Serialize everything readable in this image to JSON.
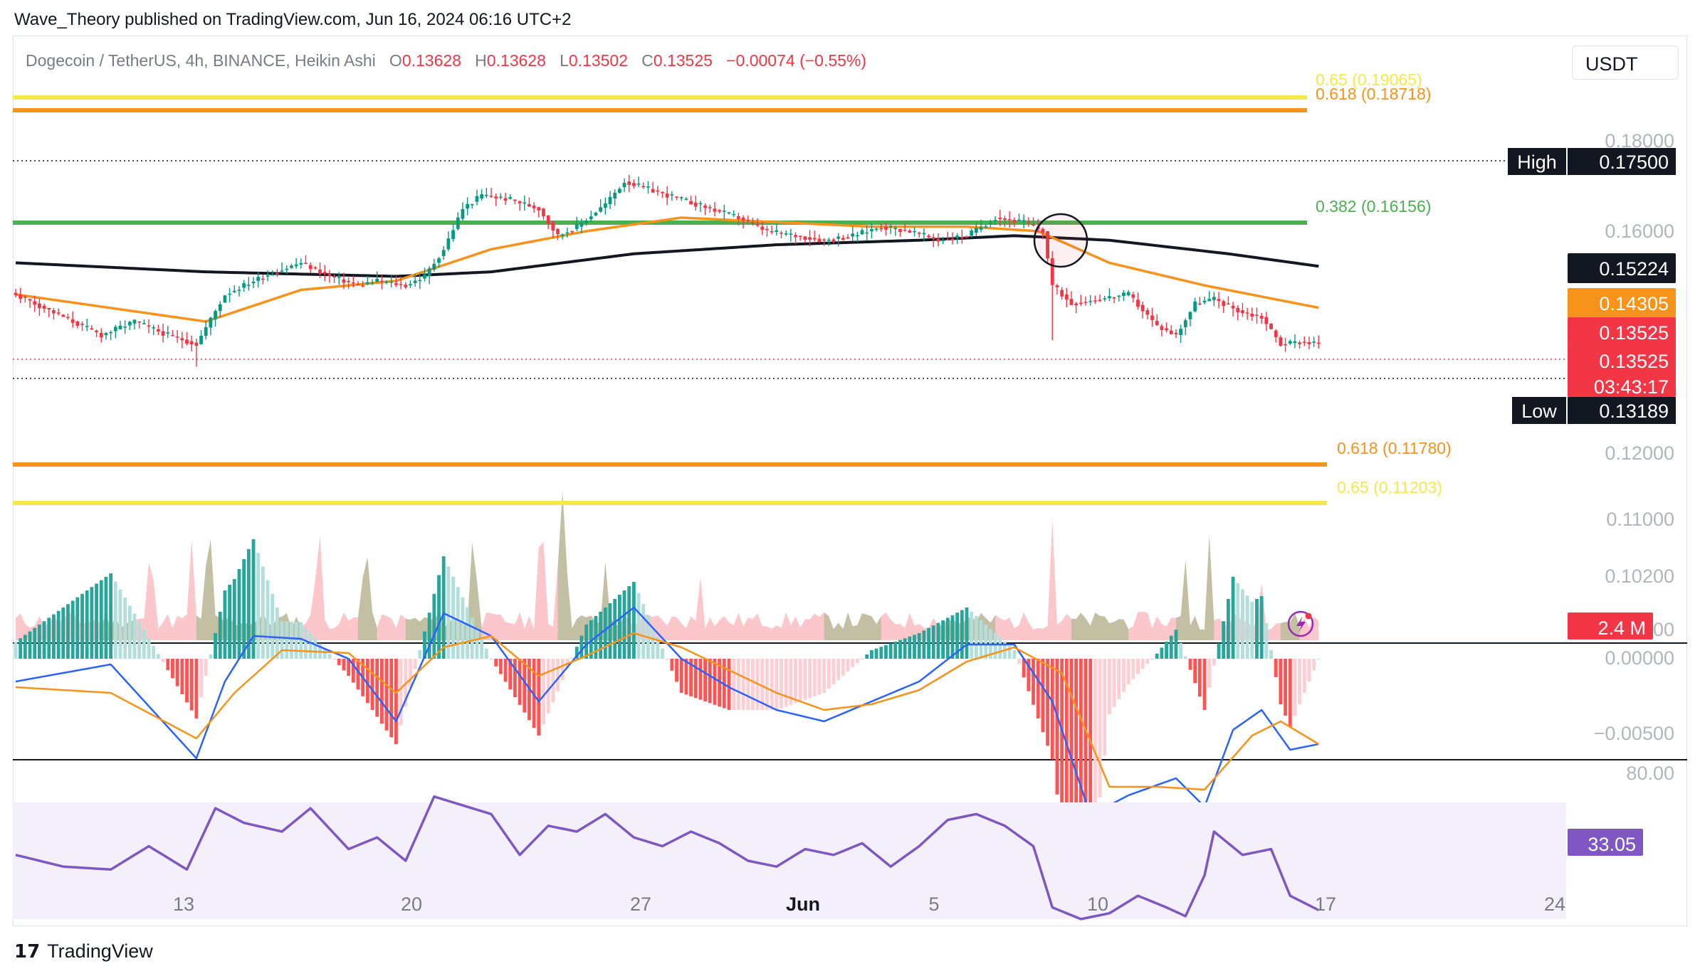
{
  "publisher": "Wave_Theory published on TradingView.com, Jun 16, 2024 06:16 UTC+2",
  "symbol": {
    "name": "Dogecoin / TetherUS, 4h, BINANCE, Heikin Ashi",
    "o_label": "O",
    "o": "0.13628",
    "h_label": "H",
    "h": "0.13628",
    "l_label": "L",
    "l": "0.13502",
    "c_label": "C",
    "c": "0.13525",
    "change": "−0.00074 (−0.55%)"
  },
  "currency_button": "USDT",
  "brand": {
    "logo": "17",
    "name": "TradingView"
  },
  "colors": {
    "up": "#089981",
    "down": "#f23645",
    "fib_618": "#f7931a",
    "fib_65": "#f5e94a",
    "fib_382": "#4caf50",
    "ema50": "#f7931a",
    "ema200": "#131722",
    "macd": "#2962ff",
    "signal": "#f7931a",
    "rsi": "#7e57c2",
    "rsi_band": "#f3f0fb"
  },
  "chart_data": [
    {
      "type": "candlestick",
      "title": "Dogecoin / TetherUS, 4h, BINANCE, Heikin Ashi",
      "x_ticks": [
        "13",
        "20",
        "27",
        "Jun",
        "5",
        "10",
        "17",
        "24"
      ],
      "y_ticks": [
        "0.18000",
        "0.16000",
        "0.12000",
        "0.11000",
        "0.10200",
        "0.0000"
      ],
      "axis_labels": [
        {
          "label": "",
          "value": "0.15224",
          "color": "#131722"
        },
        {
          "label": "",
          "value": "0.14305",
          "color": "#f7931a"
        },
        {
          "label": "",
          "value": "0.13525",
          "color": "#f23645"
        },
        {
          "label": "",
          "value": "0.13525",
          "extra": "03:43:17",
          "color": "#f23645"
        },
        {
          "label": "High",
          "value": "0.17500",
          "color": "#131722"
        },
        {
          "label": "Low",
          "value": "0.13189",
          "color": "#131722"
        }
      ],
      "fib_levels": [
        {
          "label": "0.65 (0.19065)",
          "value": 0.19065,
          "color": "#f5e94a"
        },
        {
          "label": "0.618 (0.18718)",
          "value": 0.18718,
          "color": "#f7931a"
        },
        {
          "label": "0.382 (0.16156)",
          "value": 0.16156,
          "color": "#4caf50"
        },
        {
          "label": "0.618 (0.11780)",
          "value": 0.1178,
          "color": "#f7931a"
        },
        {
          "label": "0.65 (0.11203)",
          "value": 0.11203,
          "color": "#f5e94a"
        }
      ],
      "high": 0.175,
      "low": 0.13189,
      "last": 0.13525,
      "countdown": "03:43:17",
      "ema50_last": 0.14305,
      "ema200_last": 0.15224,
      "price_keypoints": [
        [
          0,
          0.146
        ],
        [
          10,
          0.141
        ],
        [
          18,
          0.137
        ],
        [
          25,
          0.14
        ],
        [
          32,
          0.137
        ],
        [
          38,
          0.135
        ],
        [
          44,
          0.146
        ],
        [
          52,
          0.15
        ],
        [
          60,
          0.153
        ],
        [
          66,
          0.15
        ],
        [
          72,
          0.148
        ],
        [
          76,
          0.149
        ],
        [
          82,
          0.148
        ],
        [
          86,
          0.15
        ],
        [
          90,
          0.156
        ],
        [
          94,
          0.165
        ],
        [
          98,
          0.168
        ],
        [
          104,
          0.167
        ],
        [
          110,
          0.165
        ],
        [
          114,
          0.159
        ],
        [
          118,
          0.161
        ],
        [
          124,
          0.166
        ],
        [
          128,
          0.171
        ],
        [
          134,
          0.169
        ],
        [
          140,
          0.167
        ],
        [
          146,
          0.165
        ],
        [
          152,
          0.163
        ],
        [
          158,
          0.16
        ],
        [
          164,
          0.159
        ],
        [
          170,
          0.158
        ],
        [
          176,
          0.159
        ],
        [
          182,
          0.161
        ],
        [
          188,
          0.16
        ],
        [
          194,
          0.158
        ],
        [
          200,
          0.159
        ],
        [
          206,
          0.163
        ],
        [
          212,
          0.162
        ],
        [
          216,
          0.16
        ],
        [
          218,
          0.148
        ],
        [
          222,
          0.144
        ],
        [
          228,
          0.145
        ],
        [
          234,
          0.146
        ],
        [
          240,
          0.139
        ],
        [
          244,
          0.137
        ],
        [
          248,
          0.144
        ],
        [
          252,
          0.145
        ],
        [
          258,
          0.142
        ],
        [
          262,
          0.141
        ],
        [
          266,
          0.135
        ],
        [
          270,
          0.1355
        ],
        [
          274,
          0.13525
        ]
      ],
      "ema50_keypoints": [
        [
          0,
          0.146
        ],
        [
          40,
          0.14
        ],
        [
          60,
          0.147
        ],
        [
          80,
          0.149
        ],
        [
          100,
          0.156
        ],
        [
          120,
          0.16
        ],
        [
          140,
          0.163
        ],
        [
          160,
          0.162
        ],
        [
          180,
          0.161
        ],
        [
          200,
          0.161
        ],
        [
          215,
          0.16
        ],
        [
          230,
          0.153
        ],
        [
          250,
          0.148
        ],
        [
          274,
          0.14305
        ]
      ],
      "ema200_keypoints": [
        [
          0,
          0.153
        ],
        [
          40,
          0.151
        ],
        [
          80,
          0.15
        ],
        [
          100,
          0.151
        ],
        [
          130,
          0.155
        ],
        [
          160,
          0.157
        ],
        [
          190,
          0.158
        ],
        [
          210,
          0.159
        ],
        [
          230,
          0.158
        ],
        [
          255,
          0.155
        ],
        [
          274,
          0.15224
        ]
      ],
      "volume_label": "2.4 M"
    },
    {
      "type": "line",
      "title": "MACD",
      "y_ticks": [
        "0.00000",
        "−0.00500"
      ],
      "macd_keypoints": [
        [
          0,
          -0.0008
        ],
        [
          20,
          -0.0002
        ],
        [
          38,
          -0.0035
        ],
        [
          44,
          -0.0008
        ],
        [
          50,
          0.0008
        ],
        [
          60,
          0.0007
        ],
        [
          70,
          0.0
        ],
        [
          80,
          -0.0022
        ],
        [
          90,
          0.0016
        ],
        [
          100,
          0.0008
        ],
        [
          110,
          -0.0015
        ],
        [
          120,
          0.0005
        ],
        [
          130,
          0.0018
        ],
        [
          140,
          0.0
        ],
        [
          150,
          -0.001
        ],
        [
          160,
          -0.0018
        ],
        [
          170,
          -0.0022
        ],
        [
          180,
          -0.0015
        ],
        [
          190,
          -0.0008
        ],
        [
          200,
          0.0005
        ],
        [
          210,
          0.0005
        ],
        [
          218,
          -0.0015
        ],
        [
          226,
          -0.0055
        ],
        [
          234,
          -0.0048
        ],
        [
          244,
          -0.0042
        ],
        [
          250,
          -0.0052
        ],
        [
          256,
          -0.0025
        ],
        [
          262,
          -0.0018
        ],
        [
          268,
          -0.0032
        ],
        [
          274,
          -0.003
        ]
      ],
      "signal_keypoints": [
        [
          0,
          -0.001
        ],
        [
          20,
          -0.0012
        ],
        [
          38,
          -0.0028
        ],
        [
          46,
          -0.0012
        ],
        [
          56,
          0.0003
        ],
        [
          70,
          0.0002
        ],
        [
          80,
          -0.0012
        ],
        [
          90,
          0.0004
        ],
        [
          100,
          0.0008
        ],
        [
          110,
          -0.0006
        ],
        [
          120,
          0.0001
        ],
        [
          130,
          0.0009
        ],
        [
          140,
          0.0004
        ],
        [
          150,
          -0.0004
        ],
        [
          160,
          -0.0012
        ],
        [
          170,
          -0.0018
        ],
        [
          180,
          -0.0016
        ],
        [
          190,
          -0.0011
        ],
        [
          200,
          -0.0001
        ],
        [
          210,
          0.0004
        ],
        [
          220,
          -0.0005
        ],
        [
          230,
          -0.0045
        ],
        [
          240,
          -0.0045
        ],
        [
          250,
          -0.0046
        ],
        [
          260,
          -0.0027
        ],
        [
          266,
          -0.0022
        ],
        [
          274,
          -0.003
        ]
      ]
    },
    {
      "type": "line",
      "title": "RSI",
      "y_ticks": [
        "80.00"
      ],
      "last": "33.05",
      "rsi_keypoints": [
        [
          0,
          52
        ],
        [
          10,
          48
        ],
        [
          20,
          47
        ],
        [
          28,
          55
        ],
        [
          36,
          47
        ],
        [
          42,
          68
        ],
        [
          48,
          63
        ],
        [
          56,
          60
        ],
        [
          62,
          68
        ],
        [
          70,
          54
        ],
        [
          76,
          58
        ],
        [
          82,
          50
        ],
        [
          88,
          72
        ],
        [
          94,
          69
        ],
        [
          100,
          66
        ],
        [
          106,
          52
        ],
        [
          112,
          62
        ],
        [
          118,
          60
        ],
        [
          124,
          66
        ],
        [
          130,
          58
        ],
        [
          136,
          55
        ],
        [
          142,
          60
        ],
        [
          148,
          56
        ],
        [
          154,
          50
        ],
        [
          160,
          48
        ],
        [
          166,
          54
        ],
        [
          172,
          52
        ],
        [
          178,
          56
        ],
        [
          184,
          48
        ],
        [
          190,
          55
        ],
        [
          196,
          64
        ],
        [
          202,
          66
        ],
        [
          208,
          62
        ],
        [
          214,
          55
        ],
        [
          218,
          34
        ],
        [
          224,
          30
        ],
        [
          230,
          32
        ],
        [
          236,
          38
        ],
        [
          242,
          34
        ],
        [
          246,
          31
        ],
        [
          250,
          45
        ],
        [
          252,
          60
        ],
        [
          258,
          52
        ],
        [
          264,
          54
        ],
        [
          268,
          38
        ],
        [
          274,
          33.05
        ]
      ]
    }
  ]
}
